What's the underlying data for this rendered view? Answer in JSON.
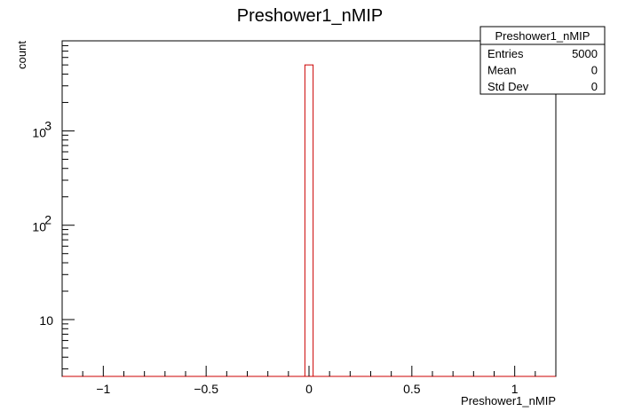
{
  "chart_data": {
    "type": "bar",
    "title": "Preshower1_nMIP",
    "xlabel": "Preshower1_nMIP",
    "ylabel": "count",
    "x_scale": "linear",
    "y_scale": "log",
    "xlim": [
      -1.2,
      1.2
    ],
    "ylim": [
      2.5,
      9000
    ],
    "x_ticks": [
      -1,
      -0.5,
      0,
      0.5,
      1
    ],
    "x_tick_labels": [
      "−1",
      "−0.5",
      "0",
      "0.5",
      "1"
    ],
    "y_ticks": [
      10,
      100,
      1000
    ],
    "y_tick_labels": [
      "10",
      "10",
      "10"
    ],
    "y_tick_exponents": [
      "",
      "2",
      "3"
    ],
    "bins": [
      {
        "x_low": -0.02,
        "x_high": 0.02,
        "count": 5000
      }
    ],
    "grid": false,
    "line_color": "#cc0000",
    "stats_box": {
      "title": "Preshower1_nMIP",
      "rows": [
        {
          "label": "Entries",
          "value": "5000"
        },
        {
          "label": "Mean",
          "value": "0"
        },
        {
          "label": "Std Dev",
          "value": "0"
        }
      ]
    }
  }
}
